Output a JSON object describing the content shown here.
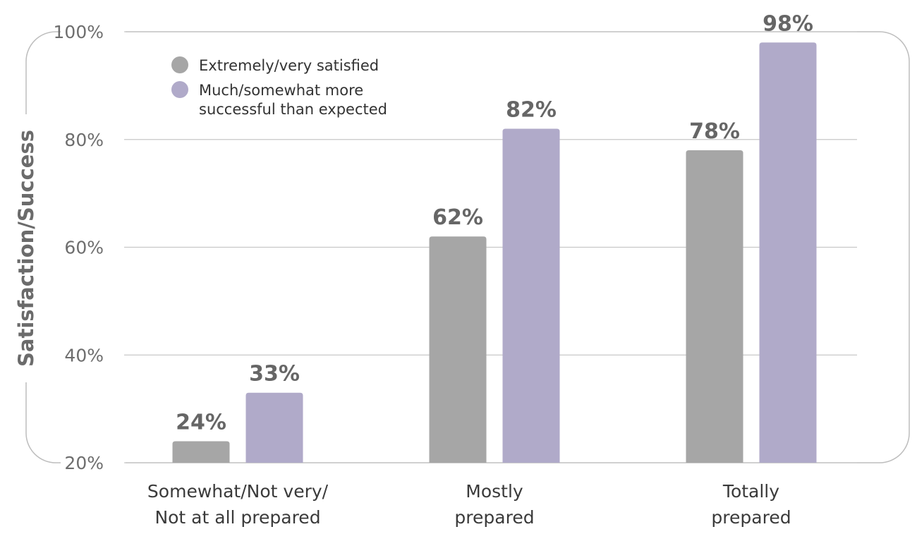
{
  "chart_data": {
    "type": "bar",
    "ylabel": "Satisfaction/Success",
    "xlabel": "",
    "ylim": [
      20,
      100
    ],
    "y_ticks": [
      20,
      40,
      60,
      80,
      100
    ],
    "y_tick_labels": [
      "20%",
      "40%",
      "60%",
      "80%",
      "100%"
    ],
    "grid": true,
    "legend_position": "top-left",
    "categories": [
      [
        "Somewhat/Not very/",
        "Not at all prepared"
      ],
      [
        "Mostly",
        "prepared"
      ],
      [
        "Totally",
        "prepared"
      ]
    ],
    "series": [
      {
        "name": "Extremely/very satisfied",
        "legend_lines": [
          "Extremely/very satisfied"
        ],
        "color": "#a6a6a6",
        "values": [
          24,
          62,
          78
        ],
        "labels": [
          "24%",
          "62%",
          "78%"
        ]
      },
      {
        "name": "Much/somewhat more successful than expected",
        "legend_lines": [
          "Much/somewhat more",
          "successful than expected"
        ],
        "color": "#b0aac9",
        "values": [
          33,
          82,
          98
        ],
        "labels": [
          "33%",
          "82%",
          "98%"
        ]
      }
    ]
  }
}
